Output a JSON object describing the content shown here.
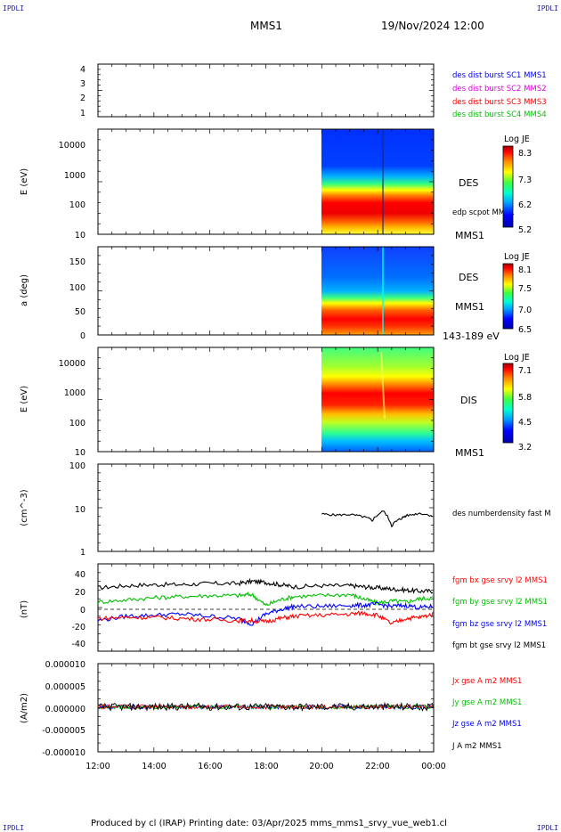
{
  "header": {
    "corner_tl": "IPDLI",
    "corner_tr": "IPDLI",
    "corner_bl": "IPDLI",
    "corner_br": "IPDLI",
    "mission": "MMS1",
    "date": "19/Nov/2024 12:00"
  },
  "footer": {
    "text": "Produced by cl (IRAP)   Printing date: 03/Apr/2025   mms_mms1_srvy_vue_web1.cl"
  },
  "time_axis": {
    "ticks": [
      "12:00",
      "14:00",
      "16:00",
      "18:00",
      "20:00",
      "22:00",
      "00:00"
    ],
    "range_hours": [
      12,
      24
    ]
  },
  "colors": {
    "blue": "#0000ff",
    "magenta": "#e000e0",
    "red": "#ff0000",
    "green": "#00c000",
    "black": "#000000"
  },
  "panels": {
    "p1": {
      "yticks": [
        "4",
        "3",
        "2",
        "1"
      ],
      "legend": [
        {
          "text": "des dist burst SC1 MMS1",
          "color": "#0000ff"
        },
        {
          "text": "des dist burst SC2 MMS2",
          "color": "#e000e0"
        },
        {
          "text": "des dist burst SC3 MMS3",
          "color": "#ff0000"
        },
        {
          "text": "des dist burst SC4 MMS4",
          "color": "#00c000"
        }
      ]
    },
    "p2": {
      "ylabel": "E (eV)",
      "yticks": [
        "10000",
        "1000",
        "100",
        "10"
      ],
      "side_label": "DES",
      "side_note": "edp scpot MMS1",
      "bottom_label": "MMS1",
      "colorbar": {
        "title": "Log JE",
        "ticks": [
          "8.3",
          "7.3",
          "6.2",
          "5.2"
        ]
      }
    },
    "p3": {
      "ylabel": "a (deg)",
      "yticks": [
        "150",
        "100",
        "50",
        "0"
      ],
      "side_label": "DES",
      "side_label2": "MMS1",
      "bottom_label": "143-189 eV",
      "colorbar": {
        "title": "Log JE",
        "ticks": [
          "8.1",
          "7.5",
          "7.0",
          "6.5"
        ]
      }
    },
    "p4": {
      "ylabel": "E (eV)",
      "yticks": [
        "10000",
        "1000",
        "100",
        "10"
      ],
      "side_label": "DIS",
      "bottom_label": "MMS1",
      "colorbar": {
        "title": "Log JE",
        "ticks": [
          "7.1",
          "5.8",
          "4.5",
          "3.2"
        ]
      }
    },
    "p5": {
      "ylabel": "(cm^-3)",
      "yticks": [
        "100",
        "10",
        "1"
      ],
      "legend": [
        {
          "text": "des numberdensity fast M",
          "color": "#000000"
        }
      ]
    },
    "p6": {
      "ylabel": "(nT)",
      "yticks": [
        "40",
        "20",
        "0",
        "-20",
        "-40"
      ],
      "legend": [
        {
          "text": "fgm bx gse srvy l2 MMS1",
          "color": "#ff0000"
        },
        {
          "text": "fgm by gse srvy l2 MMS1",
          "color": "#00c000"
        },
        {
          "text": "fgm bz gse srvy l2 MMS1",
          "color": "#0000ff"
        },
        {
          "text": "fgm bt gse srvy l2 MMS1",
          "color": "#000000"
        }
      ]
    },
    "p7": {
      "ylabel": "(A/m2)",
      "yticks": [
        "0.000010",
        "0.000005",
        "0.000000",
        "-0.000005",
        "-0.000010"
      ],
      "legend": [
        {
          "text": "Jx gse A m2 MMS1",
          "color": "#ff0000"
        },
        {
          "text": "Jy gse A m2 MMS1",
          "color": "#00c000"
        },
        {
          "text": "Jz gse A m2 MMS1",
          "color": "#0000ff"
        },
        {
          "text": "J A m2 MMS1",
          "color": "#000000"
        }
      ]
    }
  },
  "chart_data": [
    {
      "type": "line",
      "ylim": [
        -40,
        40
      ],
      "x_unit": "hours from 12:00",
      "series": [
        {
          "name": "fgm bt gse srvy l2 MMS1",
          "color": "#000000",
          "x": [
            0,
            1,
            2,
            3,
            4,
            5,
            5.5,
            6,
            6.5,
            7,
            8,
            9,
            9.5,
            10,
            10.5,
            11,
            11.5,
            12
          ],
          "y": [
            18,
            20,
            21,
            21,
            22,
            22,
            24,
            23,
            21,
            19,
            20,
            20,
            19,
            18,
            17,
            16,
            15,
            15
          ]
        },
        {
          "name": "fgm by gse srvy l2 MMS1",
          "color": "#00c000",
          "x": [
            0,
            1,
            2,
            3,
            4,
            5,
            5.5,
            6,
            6.5,
            7,
            8,
            9,
            9.5,
            10,
            10.5,
            11,
            11.5,
            12
          ],
          "y": [
            5,
            7,
            9,
            10,
            11,
            11,
            12,
            2,
            7,
            10,
            11,
            12,
            8,
            4,
            6,
            5,
            8,
            9
          ]
        },
        {
          "name": "fgm bz gse srvy l2 MMS1",
          "color": "#0000ff",
          "x": [
            0,
            1,
            2,
            3,
            4,
            5,
            5.5,
            6,
            6.5,
            7,
            8,
            9,
            9.5,
            10,
            10.5,
            11,
            11.5,
            12
          ],
          "y": [
            -12,
            -8,
            -7,
            -6,
            -8,
            -10,
            -15,
            -6,
            -2,
            1,
            1,
            2,
            2,
            3,
            1,
            2,
            0,
            1
          ]
        },
        {
          "name": "fgm bx gse srvy l2 MMS1",
          "color": "#ff0000",
          "x": [
            0,
            1,
            2,
            3,
            4,
            5,
            5.5,
            6,
            6.5,
            7,
            8,
            9,
            9.5,
            10,
            10.5,
            11,
            11.5,
            12
          ],
          "y": [
            -10,
            -9,
            -9,
            -10,
            -11,
            -12,
            -12,
            -13,
            -10,
            -8,
            -7,
            -6,
            -5,
            -7,
            -15,
            -10,
            -9,
            -6
          ]
        }
      ]
    },
    {
      "type": "line",
      "ylim": [
        1,
        100
      ],
      "x_unit": "hours from 12:00",
      "series": [
        {
          "name": "des numberdensity fast M",
          "color": "#000000",
          "x": [
            8.0,
            8.5,
            9.0,
            9.5,
            9.8,
            10.2,
            10.5,
            10.8,
            11.0,
            11.5,
            12.0
          ],
          "y": [
            7.2,
            6.8,
            7.0,
            6.2,
            5.2,
            8.5,
            4.0,
            5.5,
            6.5,
            7.5,
            6.5
          ]
        }
      ]
    },
    {
      "type": "line",
      "ylim": [
        -1e-05,
        1e-05
      ],
      "x_unit": "hours from 12:00",
      "series": [
        {
          "name": "J A m2 MMS1",
          "color": "#000000",
          "x": [
            0,
            2,
            4,
            6,
            8,
            10,
            12
          ],
          "y": [
            3e-07,
            2e-07,
            3e-07,
            3e-07,
            2e-07,
            3e-07,
            2e-07
          ]
        }
      ]
    }
  ]
}
